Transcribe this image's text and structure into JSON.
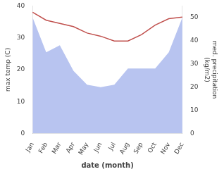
{
  "chart_data": {
    "type": "line",
    "categories": [
      "Jan",
      "Feb",
      "Mar",
      "Apr",
      "May",
      "Jun",
      "Jul",
      "Aug",
      "Sep",
      "Oct",
      "Nov",
      "Dec"
    ],
    "series": [
      {
        "type": "area",
        "color": "#b8c4f0",
        "axis": "y2",
        "values": [
          50,
          35,
          38,
          27,
          21,
          20,
          21,
          28,
          28,
          28,
          35,
          50
        ]
      },
      {
        "type": "line",
        "color": "#c0504d",
        "values": [
          38,
          35.5,
          34.5,
          33.5,
          31.5,
          30.5,
          29,
          29,
          31,
          34,
          36,
          36.5
        ]
      }
    ],
    "xlabel": "date (month)",
    "ylabel": "max temp (C)",
    "y2label": "med. precipitation\n(kg/m2)",
    "ylim": [
      0,
      40
    ],
    "yticks": [
      0,
      10,
      20,
      30,
      40
    ],
    "y2lim": [
      0,
      55
    ],
    "y2ticks": [
      0,
      10,
      20,
      30,
      40,
      50
    ],
    "grid": false
  }
}
